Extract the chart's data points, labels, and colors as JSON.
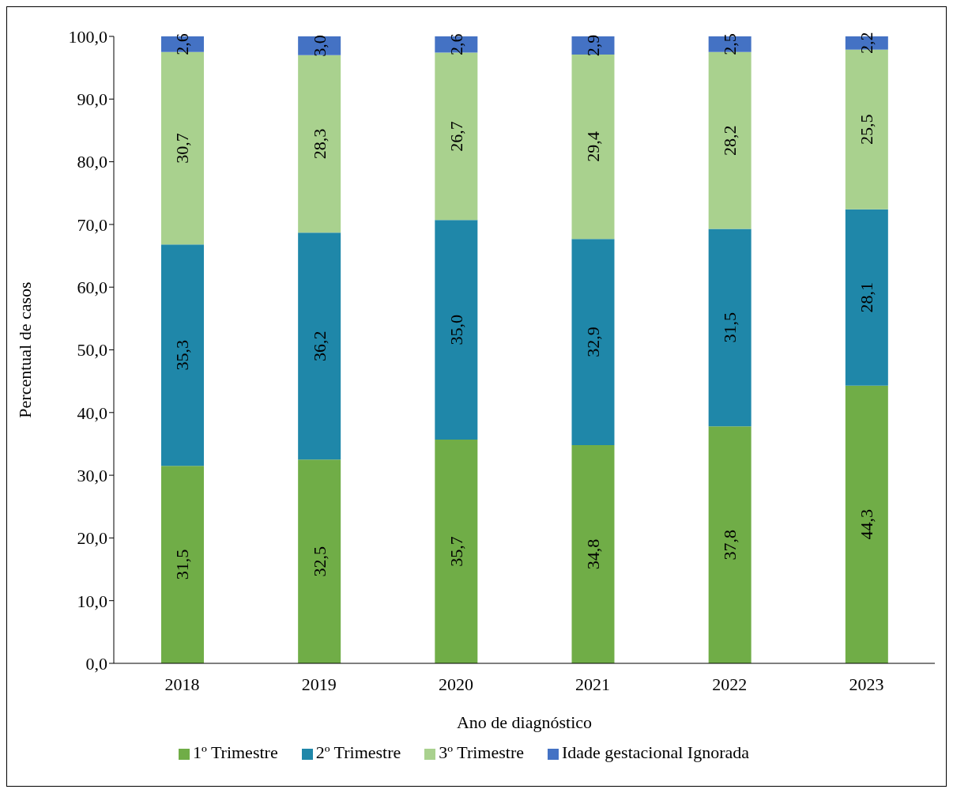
{
  "chart_data": {
    "type": "bar",
    "stacked": true,
    "xlabel": "Ano de diagnóstico",
    "ylabel": "Percentual de casos",
    "categories": [
      "2018",
      "2019",
      "2020",
      "2021",
      "2022",
      "2023"
    ],
    "series": [
      {
        "name": "1º Trimestre",
        "color": "#70ad47",
        "values": [
          31.5,
          32.5,
          35.7,
          34.8,
          37.8,
          44.3
        ],
        "value_labels": [
          "31,5",
          "32,5",
          "35,7",
          "34,8",
          "37,8",
          "44,3"
        ]
      },
      {
        "name": "2º Trimestre",
        "color": "#1f87a9",
        "values": [
          35.3,
          36.2,
          35.0,
          32.9,
          31.5,
          28.1
        ],
        "value_labels": [
          "35,3",
          "36,2",
          "35,0",
          "32,9",
          "31,5",
          "28,1"
        ]
      },
      {
        "name": "3º Trimestre",
        "color": "#a9d18e",
        "values": [
          30.7,
          28.3,
          26.7,
          29.4,
          28.2,
          25.5
        ],
        "value_labels": [
          "30,7",
          "28,3",
          "26,7",
          "29,4",
          "28,2",
          "25,5"
        ]
      },
      {
        "name": "Idade gestacional Ignorada",
        "color": "#4472c4",
        "values": [
          2.6,
          3.0,
          2.6,
          2.9,
          2.5,
          2.2
        ],
        "value_labels": [
          "2,6",
          "3,0",
          "2,6",
          "2,9",
          "2,5",
          "2,2"
        ]
      }
    ],
    "ylim": [
      0,
      100
    ],
    "yticks": [
      {
        "value": 0,
        "label": "0,0"
      },
      {
        "value": 10,
        "label": "10,0"
      },
      {
        "value": 20,
        "label": "20,0"
      },
      {
        "value": 30,
        "label": "30,0"
      },
      {
        "value": 40,
        "label": "40,0"
      },
      {
        "value": 50,
        "label": "50,0"
      },
      {
        "value": 60,
        "label": "60,0"
      },
      {
        "value": 70,
        "label": "70,0"
      },
      {
        "value": 80,
        "label": "80,0"
      },
      {
        "value": 90,
        "label": "90,0"
      },
      {
        "value": 100,
        "label": "100,0"
      }
    ],
    "grid": false,
    "legend": "bottom"
  }
}
